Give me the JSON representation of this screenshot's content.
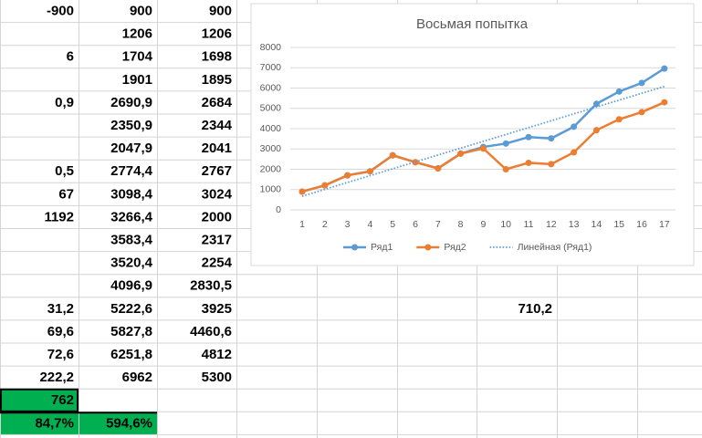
{
  "sheet": {
    "rows": [
      [
        "-900",
        "900",
        "900"
      ],
      [
        null,
        "1206",
        "1206"
      ],
      [
        "6",
        "1704",
        "1698"
      ],
      [
        null,
        "1901",
        "1895"
      ],
      [
        "0,9",
        "2690,9",
        "2684"
      ],
      [
        null,
        "2350,9",
        "2344"
      ],
      [
        null,
        "2047,9",
        "2041"
      ],
      [
        "0,5",
        "2774,4",
        "2767"
      ],
      [
        "67",
        "3098,4",
        "3024"
      ],
      [
        "1192",
        "3266,4",
        "2000"
      ],
      [
        null,
        "3583,4",
        "2317"
      ],
      [
        null,
        "3520,4",
        "2254"
      ],
      [
        null,
        "4096,9",
        "2830,5"
      ],
      [
        "31,2",
        "5222,6",
        "3925",
        null,
        null,
        null,
        "710,2"
      ],
      [
        "69,6",
        "5827,8",
        "4460,6"
      ],
      [
        "72,6",
        "6251,8",
        "4812"
      ],
      [
        "222,2",
        "6962",
        "5300"
      ],
      [
        "762"
      ],
      [
        "84,7%",
        "594,6%"
      ]
    ]
  },
  "chart_data": {
    "type": "line",
    "title": "Восьмая попытка",
    "categories": [
      "1",
      "2",
      "3",
      "4",
      "5",
      "6",
      "7",
      "8",
      "9",
      "10",
      "11",
      "12",
      "13",
      "14",
      "15",
      "16",
      "17"
    ],
    "series": [
      {
        "name": "Ряд1",
        "color": "#5b9bd5",
        "values": [
          900,
          1206,
          1704,
          1901,
          2690.9,
          2350.9,
          2047.9,
          2774.4,
          3098.4,
          3266.4,
          3583.4,
          3520.4,
          4096.9,
          5222.6,
          5827.8,
          6251.8,
          6962
        ]
      },
      {
        "name": "Ряд2",
        "color": "#ed7d31",
        "values": [
          900,
          1206,
          1698,
          1895,
          2684,
          2344,
          2041,
          2767,
          3024,
          2000,
          2317,
          2254,
          2830.5,
          3925,
          4460.6,
          4812,
          5300
        ]
      },
      {
        "name": "Линейная (Ряд1)",
        "color": "#5b9bd5",
        "trendline": "linear"
      }
    ],
    "ylim": [
      0,
      8000
    ],
    "yticks": [
      0,
      1000,
      2000,
      3000,
      4000,
      5000,
      6000,
      7000,
      8000
    ],
    "grid": true,
    "legend": "bottom"
  }
}
